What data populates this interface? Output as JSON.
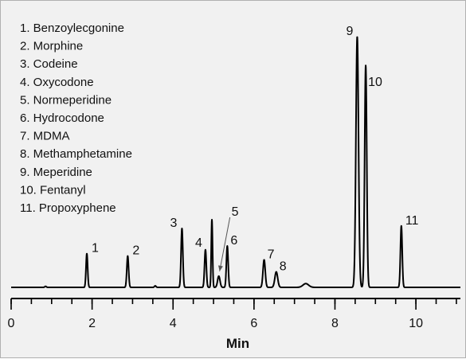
{
  "chart_data": {
    "type": "line",
    "title": "",
    "xlabel": "Min",
    "ylabel": "",
    "xlim": [
      0,
      11.1
    ],
    "ylim": [
      0,
      1
    ],
    "x_ticks": [
      "0",
      "2",
      "4",
      "6",
      "8",
      "10"
    ],
    "x_tick_values": [
      0,
      2,
      4,
      6,
      8,
      10
    ],
    "x_minor_step": 0.5,
    "grid": false,
    "legend": {
      "placement": "top-left",
      "entries": [
        "1. Benzoylecgonine",
        "2. Morphine",
        "3. Codeine",
        "4. Oxycodone",
        "5. Normeperidine",
        "6. Hydrocodone",
        "7. MDMA",
        "8. Methamphetamine",
        "9. Meperidine",
        "10. Fentanyl",
        "11. Propoxyphene"
      ]
    },
    "peaks": [
      {
        "label": "1",
        "x": 1.87,
        "height": 0.135,
        "width": 0.02
      },
      {
        "label": "2",
        "x": 2.88,
        "height": 0.125,
        "width": 0.022
      },
      {
        "label": "3",
        "x": 4.22,
        "height": 0.235,
        "width": 0.022
      },
      {
        "label": "4",
        "x": 4.8,
        "height": 0.15,
        "width": 0.022
      },
      {
        "label": "",
        "x": 4.96,
        "height": 0.27,
        "width": 0.016
      },
      {
        "label": "5",
        "x": 5.13,
        "height": 0.045,
        "width": 0.03
      },
      {
        "label": "6",
        "x": 5.34,
        "height": 0.165,
        "width": 0.022
      },
      {
        "label": "7",
        "x": 6.25,
        "height": 0.11,
        "width": 0.028
      },
      {
        "label": "8",
        "x": 6.55,
        "height": 0.062,
        "width": 0.035
      },
      {
        "label": "9",
        "x": 8.55,
        "height": 1.0,
        "width": 0.032
      },
      {
        "label": "10",
        "x": 8.76,
        "height": 0.885,
        "width": 0.026
      },
      {
        "label": "11",
        "x": 9.64,
        "height": 0.245,
        "width": 0.022
      }
    ],
    "minor_bumps": [
      {
        "x": 0.85,
        "height": 0.004,
        "width": 0.02
      },
      {
        "x": 3.56,
        "height": 0.006,
        "width": 0.02
      },
      {
        "x": 7.28,
        "height": 0.015,
        "width": 0.07
      }
    ],
    "color": "#000000"
  }
}
